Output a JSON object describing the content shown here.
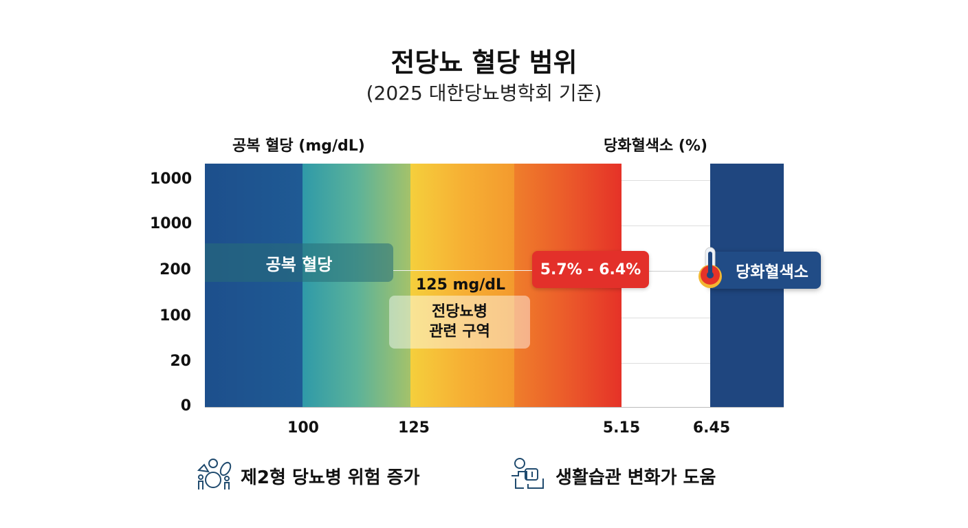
{
  "title": "전당뇨 혈당 범위",
  "subtitle": "(2025 대한당뇨병학회 기준)",
  "colors": {
    "blue": "#1d4f8c",
    "teal": "#3aa6a6",
    "yellow": "#f5cc3a",
    "orange": "#f08a2a",
    "red": "#e53228",
    "navy": "#1f467f"
  },
  "chart_data": {
    "type": "heatmap",
    "left_axis_title": "공복 혈당 (mg/dL)",
    "right_axis_title": "당화혈색소 (%)",
    "y_ticks": [
      "1000",
      "1000",
      "200",
      "100",
      "20",
      "0"
    ],
    "x_ticks": [
      "100",
      "125",
      "5.15",
      "6.45"
    ],
    "annotations": {
      "fasting_label": "공복 혈당",
      "threshold": "125 mg/dL",
      "zone_line1": "전당뇨병",
      "zone_line2": "관련 구역",
      "a1c_range": "5.7% - 6.4%",
      "a1c_label": "당화혈색소"
    }
  },
  "footer": {
    "left": {
      "icon": "people-icon",
      "text": "제2형 당뇨병 위험 증가"
    },
    "right": {
      "icon": "lifestyle-icon",
      "text": "생활습관 변화가 도움"
    }
  }
}
